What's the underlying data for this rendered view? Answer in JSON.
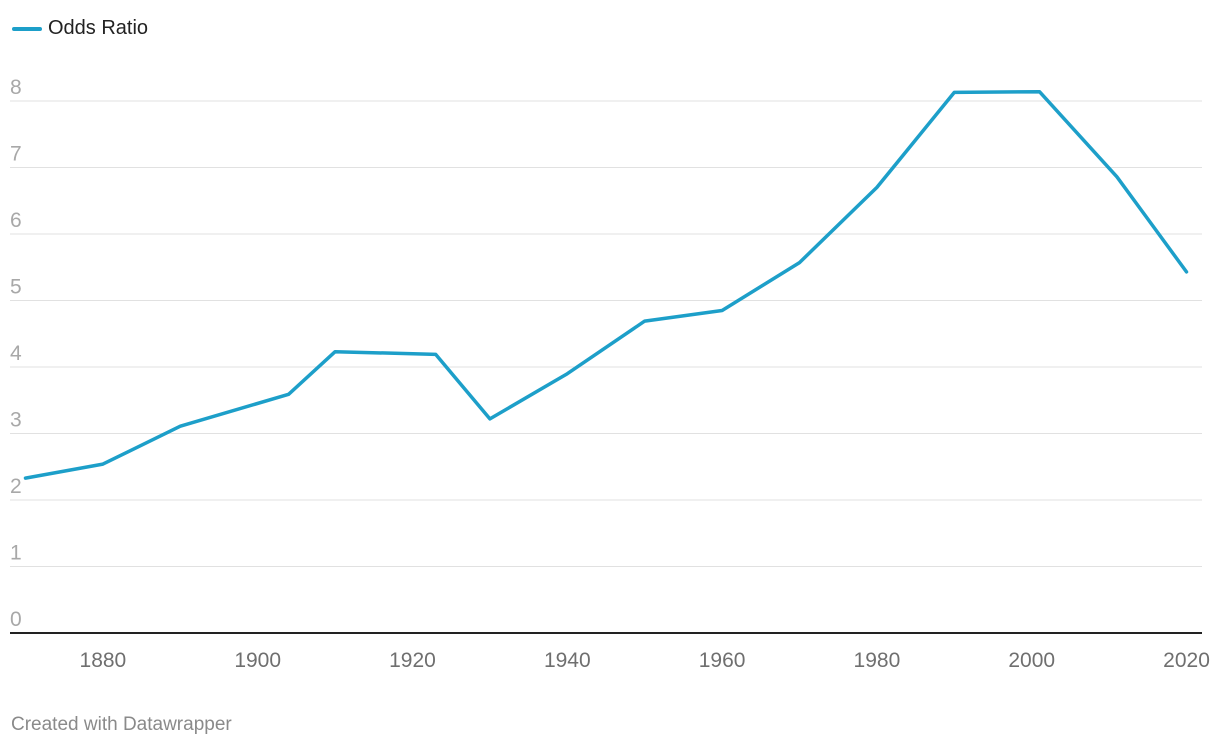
{
  "legend": {
    "label": "Odds Ratio"
  },
  "footer": {
    "credit": "Created with Datawrapper"
  },
  "chart_data": {
    "type": "line",
    "title": "",
    "xlabel": "",
    "ylabel": "",
    "xlim": [
      1868,
      2022
    ],
    "ylim": [
      0,
      8
    ],
    "x_ticks": [
      1880,
      1900,
      1920,
      1940,
      1960,
      1980,
      2000,
      2020
    ],
    "y_ticks": [
      0,
      1,
      2,
      3,
      4,
      5,
      6,
      7,
      8
    ],
    "grid": true,
    "legend_position": "top-left",
    "series": [
      {
        "name": "Odds Ratio",
        "color": "#1d9fc9",
        "x": [
          1870,
          1880,
          1890,
          1904,
          1910,
          1923,
          1930,
          1940,
          1950,
          1960,
          1970,
          1980,
          1990,
          2001,
          2011,
          2020
        ],
        "y": [
          2.33,
          2.54,
          3.11,
          3.59,
          4.23,
          4.19,
          3.22,
          3.9,
          4.69,
          4.85,
          5.57,
          6.7,
          8.13,
          8.14,
          6.86,
          5.43
        ]
      }
    ]
  }
}
